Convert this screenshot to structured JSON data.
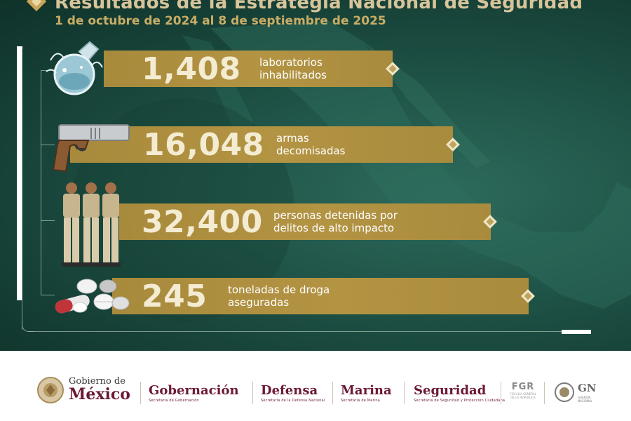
{
  "header": {
    "title": "Resultados de la Estrategia Nacional de Seguridad",
    "subtitle": "1 de octubre de 2024 al 8 de septiembre de 2025"
  },
  "stats": [
    {
      "number": "1,408",
      "line1": "laboratorios",
      "line2": "inhabilitados",
      "icon": "lab-flask-icon"
    },
    {
      "number": "16,048",
      "line1": "armas",
      "line2": "decomisadas",
      "icon": "pistol-icon"
    },
    {
      "number": "32,400",
      "line1": "personas detenidas por",
      "line2": "delitos de alto impacto",
      "icon": "detainees-icon"
    },
    {
      "number": "245",
      "line1": "toneladas de droga",
      "line2": "aseguradas",
      "icon": "pills-icon"
    }
  ],
  "logos": {
    "gobierno": {
      "line1": "Gobierno de",
      "line2": "México"
    },
    "gobernacion": {
      "name": "Gobernación",
      "sub": "Secretaría de Gobernación"
    },
    "defensa": {
      "name": "Defensa",
      "sub": "Secretaría de la Defensa Nacional"
    },
    "marina": {
      "name": "Marina",
      "sub": "Secretaría de Marina"
    },
    "seguridad": {
      "name": "Seguridad",
      "sub": "Secretaría de Seguridad y Protección Ciudadana"
    },
    "fgr": {
      "name": "FGR",
      "sub1": "FISCALÍA GENERAL",
      "sub2": "DE LA REPÚBLICA"
    },
    "gn": {
      "name": "GN",
      "sub1": "GUARDIA",
      "sub2": "NACIONAL"
    }
  },
  "colors": {
    "background_green": "#1f5347",
    "gold": "#b39443",
    "guinda": "#6b1a35",
    "title_gold": "#d8c49a"
  }
}
